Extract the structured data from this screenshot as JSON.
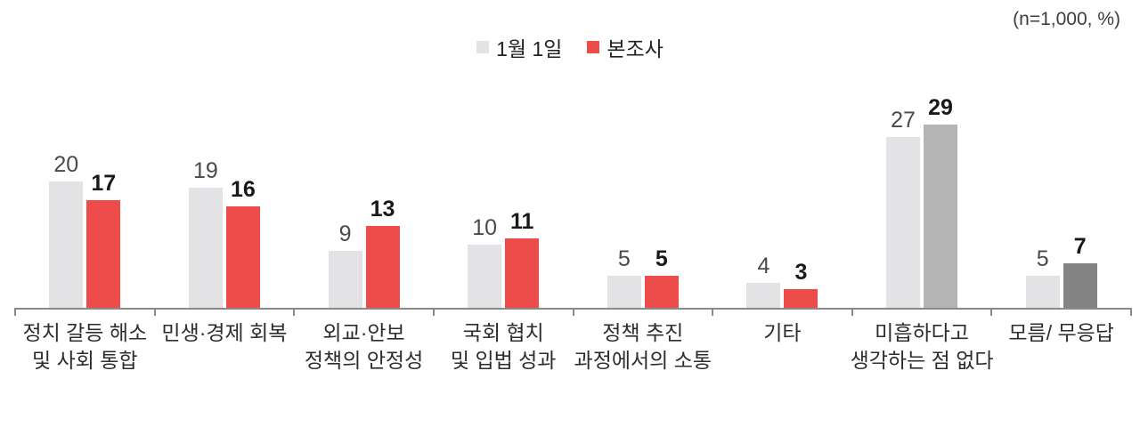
{
  "chart_data": {
    "type": "bar",
    "title": "",
    "note": "(n=1,000, %)",
    "categories": [
      "정치 갈등 해소 및 사회 통합",
      "민생·경제 회복",
      "외교·안보 정책의 안정성",
      "국회 협치 및 입법 성과",
      "정책 추진 과정에서의 소통",
      "기타",
      "미흡하다고 생각하는 점 없다",
      "모름/ 무응답"
    ],
    "category_lines": [
      [
        "정치 갈등 해소",
        "및 사회 통합"
      ],
      [
        "민생·경제 회복"
      ],
      [
        "외교·안보",
        "정책의 안정성"
      ],
      [
        "국회 협치",
        "및 입법 성과"
      ],
      [
        "정책 추진",
        "과정에서의 소통"
      ],
      [
        "기타"
      ],
      [
        "미흡하다고",
        "생각하는 점 없다"
      ],
      [
        "모름/ 무응답"
      ]
    ],
    "series": [
      {
        "name": "1월 1일",
        "color": "#e3e3e5",
        "values": [
          20,
          19,
          9,
          10,
          5,
          4,
          27,
          5
        ]
      },
      {
        "name": "본조사",
        "color": "#ee4b4b",
        "values": [
          17,
          16,
          13,
          11,
          5,
          3,
          29,
          7
        ],
        "color_overrides": {
          "6": "#b5b5b5",
          "7": "#838383"
        }
      }
    ],
    "ylim": [
      0,
      32
    ],
    "grid": false,
    "value_labels": true,
    "legend_position": "top-center",
    "axis_color": "#8a8a8a"
  }
}
